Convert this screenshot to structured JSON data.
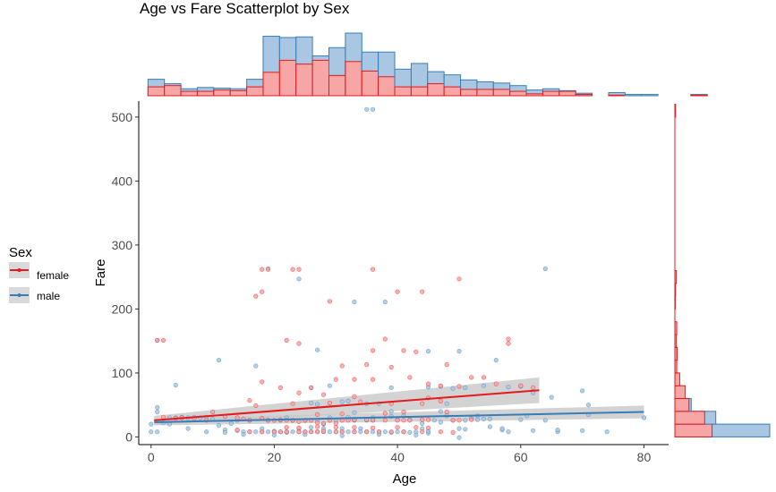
{
  "chart_data": {
    "type": "scatter",
    "title": "Age vs Fare Scatterplot by Sex",
    "xlabel": "Age",
    "ylabel": "Fare",
    "xlim": [
      -2,
      84
    ],
    "ylim": [
      -12,
      525
    ],
    "x_ticks": [
      0,
      20,
      40,
      60,
      80
    ],
    "y_ticks": [
      0,
      100,
      200,
      300,
      400,
      500
    ],
    "grid": false,
    "legend": {
      "title": "Sex",
      "placement": "left",
      "entries": [
        "female",
        "male"
      ]
    },
    "colors": {
      "female": "#e41a1c",
      "female_fill": "#f8a5a5",
      "male": "#377eb8",
      "male_fill": "#a9c6e2",
      "band": "#c8c8c8"
    },
    "series": [
      {
        "name": "female",
        "points": [
          [
            1,
            151
          ],
          [
            2,
            151
          ],
          [
            18,
            262
          ],
          [
            19,
            262
          ],
          [
            23,
            262
          ],
          [
            24,
            262
          ],
          [
            18,
            227
          ],
          [
            17,
            220
          ],
          [
            36,
            262
          ],
          [
            44,
            227
          ],
          [
            40,
            227
          ],
          [
            50,
            247
          ],
          [
            29,
            212
          ],
          [
            24,
            146
          ],
          [
            22,
            151
          ],
          [
            38,
            153
          ],
          [
            36,
            135
          ],
          [
            41,
            135
          ],
          [
            43,
            133
          ],
          [
            48,
            113
          ],
          [
            58,
            146
          ],
          [
            58,
            153
          ],
          [
            31,
            111
          ],
          [
            35,
            113
          ],
          [
            39,
            109
          ],
          [
            16,
            57
          ],
          [
            18,
            86
          ],
          [
            21,
            77
          ],
          [
            26,
            77
          ],
          [
            30,
            90
          ],
          [
            33,
            90
          ],
          [
            36,
            90
          ],
          [
            42,
            93
          ],
          [
            45,
            83
          ],
          [
            47,
            80
          ],
          [
            50,
            79
          ],
          [
            52,
            93
          ],
          [
            54,
            93
          ],
          [
            56,
            83
          ],
          [
            60,
            80
          ],
          [
            62,
            77
          ],
          [
            24,
            69
          ],
          [
            28,
            66
          ],
          [
            33,
            63
          ],
          [
            45,
            61
          ],
          [
            47,
            56
          ],
          [
            2,
            31
          ],
          [
            4,
            29
          ],
          [
            5,
            30
          ],
          [
            7,
            29
          ],
          [
            9,
            26
          ],
          [
            12,
            32
          ],
          [
            14,
            30
          ],
          [
            15,
            28
          ],
          [
            16,
            26
          ],
          [
            18,
            29
          ],
          [
            19,
            26
          ],
          [
            20,
            26
          ],
          [
            21,
            27
          ],
          [
            22,
            26
          ],
          [
            23,
            26
          ],
          [
            24,
            24
          ],
          [
            25,
            26
          ],
          [
            26,
            26
          ],
          [
            27,
            22
          ],
          [
            28,
            21
          ],
          [
            29,
            26
          ],
          [
            30,
            21
          ],
          [
            31,
            26
          ],
          [
            32,
            26
          ],
          [
            33,
            27
          ],
          [
            35,
            27
          ],
          [
            36,
            26
          ],
          [
            38,
            26
          ],
          [
            40,
            26
          ],
          [
            41,
            26
          ],
          [
            42,
            26
          ],
          [
            44,
            27
          ],
          [
            45,
            27
          ],
          [
            48,
            39
          ],
          [
            49,
            26
          ],
          [
            50,
            26
          ],
          [
            52,
            27
          ],
          [
            14,
            11
          ],
          [
            16,
            8
          ],
          [
            18,
            8
          ],
          [
            20,
            8
          ],
          [
            21,
            8
          ],
          [
            22,
            8
          ],
          [
            24,
            8
          ],
          [
            25,
            8
          ],
          [
            26,
            8
          ],
          [
            27,
            8
          ],
          [
            28,
            9
          ],
          [
            30,
            8
          ],
          [
            31,
            8
          ],
          [
            33,
            8
          ],
          [
            35,
            8
          ],
          [
            37,
            8
          ],
          [
            39,
            8
          ],
          [
            41,
            8
          ],
          [
            44,
            8
          ],
          [
            47,
            8
          ],
          [
            49,
            7
          ],
          [
            22,
            15
          ],
          [
            24,
            14
          ],
          [
            27,
            16
          ],
          [
            30,
            15
          ],
          [
            33,
            15
          ],
          [
            36,
            14
          ],
          [
            40,
            15
          ],
          [
            43,
            15
          ],
          [
            45,
            14
          ],
          [
            17,
            49
          ],
          [
            23,
            52
          ],
          [
            29,
            53
          ],
          [
            34,
            55
          ],
          [
            39,
            52
          ],
          [
            44,
            52
          ],
          [
            27,
            35
          ],
          [
            31,
            36
          ],
          [
            38,
            37
          ],
          [
            41,
            39
          ],
          [
            10,
            39
          ]
        ],
        "trend": {
          "x": [
            0.5,
            63
          ],
          "y": [
            26,
            73
          ],
          "band_halfwidth": [
            7,
            20
          ]
        }
      },
      {
        "name": "male",
        "points": [
          [
            35,
            512
          ],
          [
            36,
            512
          ],
          [
            1,
            151
          ],
          [
            19,
            263
          ],
          [
            24,
            247
          ],
          [
            64,
            263
          ],
          [
            33,
            211
          ],
          [
            38,
            211
          ],
          [
            17,
            111
          ],
          [
            50,
            134
          ],
          [
            45,
            134
          ],
          [
            27,
            136
          ],
          [
            56,
            120
          ],
          [
            11,
            120
          ],
          [
            54,
            80
          ],
          [
            47,
            79
          ],
          [
            58,
            78
          ],
          [
            60,
            79
          ],
          [
            49,
            76
          ],
          [
            51,
            77
          ],
          [
            4,
            81
          ],
          [
            29,
            80
          ],
          [
            39,
            77
          ],
          [
            62,
            69
          ],
          [
            65,
            62
          ],
          [
            70,
            72
          ],
          [
            71,
            50
          ],
          [
            80,
            30
          ],
          [
            71,
            35
          ],
          [
            61,
            33
          ],
          [
            64,
            26
          ],
          [
            74,
            8
          ],
          [
            70,
            10
          ],
          [
            66,
            8
          ],
          [
            60,
            27
          ],
          [
            57,
            11
          ],
          [
            57,
            13
          ],
          [
            55,
            16
          ],
          [
            55,
            28
          ],
          [
            54,
            28
          ],
          [
            53,
            27
          ],
          [
            51,
            26
          ],
          [
            51,
            12
          ],
          [
            52,
            29
          ],
          [
            50,
            13
          ],
          [
            49,
            26
          ],
          [
            48,
            52
          ],
          [
            47,
            40
          ],
          [
            46,
            26
          ],
          [
            45,
            6
          ],
          [
            45,
            9
          ],
          [
            44,
            13
          ],
          [
            43,
            8
          ],
          [
            42,
            27
          ],
          [
            42,
            7
          ],
          [
            41,
            8
          ],
          [
            40,
            8
          ],
          [
            40,
            27
          ],
          [
            39,
            32
          ],
          [
            39,
            7
          ],
          [
            38,
            8
          ],
          [
            37,
            8
          ],
          [
            37,
            52
          ],
          [
            36,
            26
          ],
          [
            36,
            8
          ],
          [
            35,
            8
          ],
          [
            35,
            26
          ],
          [
            34,
            13
          ],
          [
            34,
            8
          ],
          [
            33,
            8
          ],
          [
            33,
            26
          ],
          [
            32,
            8
          ],
          [
            32,
            56
          ],
          [
            31,
            8
          ],
          [
            31,
            13
          ],
          [
            30,
            8
          ],
          [
            30,
            26
          ],
          [
            29,
            8
          ],
          [
            29,
            30
          ],
          [
            28,
            8
          ],
          [
            28,
            13
          ],
          [
            27,
            8
          ],
          [
            27,
            26
          ],
          [
            26,
            8
          ],
          [
            26,
            53
          ],
          [
            25,
            8
          ],
          [
            25,
            26
          ],
          [
            24,
            8
          ],
          [
            24,
            13
          ],
          [
            23,
            8
          ],
          [
            23,
            26
          ],
          [
            22,
            8
          ],
          [
            22,
            7
          ],
          [
            21,
            8
          ],
          [
            21,
            26
          ],
          [
            20,
            8
          ],
          [
            20,
            9
          ],
          [
            19,
            8
          ],
          [
            19,
            26
          ],
          [
            18,
            8
          ],
          [
            18,
            13
          ],
          [
            17,
            8
          ],
          [
            16,
            8
          ],
          [
            16,
            26
          ],
          [
            15,
            8
          ],
          [
            14,
            10
          ],
          [
            13,
            21
          ],
          [
            12,
            11
          ],
          [
            11,
            18
          ],
          [
            10,
            28
          ],
          [
            9,
            31
          ],
          [
            8,
            30
          ],
          [
            7,
            31
          ],
          [
            6,
            30
          ],
          [
            5,
            31
          ],
          [
            4,
            30
          ],
          [
            3,
            30
          ],
          [
            2,
            22
          ],
          [
            1,
            39
          ],
          [
            1,
            46
          ],
          [
            0,
            8
          ],
          [
            1,
            8
          ],
          [
            3,
            20
          ],
          [
            0,
            20
          ],
          [
            6,
            13
          ],
          [
            9,
            8
          ],
          [
            12,
            7
          ],
          [
            14,
            26
          ],
          [
            26,
            15
          ],
          [
            28,
            20
          ],
          [
            32,
            31
          ],
          [
            44,
            21
          ],
          [
            41,
            33
          ],
          [
            47,
            23
          ],
          [
            53,
            33
          ],
          [
            58,
            8
          ],
          [
            43,
            3
          ],
          [
            37,
            4
          ],
          [
            31,
            2
          ],
          [
            25,
            4
          ],
          [
            20,
            3
          ],
          [
            15,
            4
          ],
          [
            26,
            77
          ],
          [
            31,
            55
          ],
          [
            36,
            30
          ],
          [
            35,
            52
          ],
          [
            45,
            78
          ],
          [
            22,
            30
          ],
          [
            33,
            38
          ],
          [
            48,
            33
          ],
          [
            50,
            -1
          ],
          [
            62,
            10
          ],
          [
            66,
            11
          ],
          [
            39,
            40
          ],
          [
            27,
            51
          ]
        ],
        "trend": {
          "x": [
            0.5,
            80
          ],
          "y": [
            23,
            39
          ],
          "band_halfwidth": [
            5,
            10
          ]
        }
      }
    ],
    "age_histogram": {
      "bin_width": 2.67,
      "start": -0.5,
      "male_counts": [
        26,
        19,
        11,
        13,
        12,
        11,
        26,
        94,
        92,
        93,
        63,
        76,
        99,
        69,
        69,
        42,
        51,
        38,
        33,
        25,
        22,
        20,
        16,
        9,
        11,
        8,
        4,
        0,
        5,
        2,
        2,
        0,
        0,
        2
      ],
      "female_counts": [
        14,
        16,
        7,
        7,
        9,
        8,
        14,
        37,
        56,
        50,
        56,
        32,
        54,
        39,
        30,
        14,
        14,
        19,
        14,
        10,
        10,
        10,
        7,
        3,
        7,
        7,
        2,
        0,
        1,
        0,
        0,
        0,
        0,
        1
      ]
    },
    "fare_histogram": {
      "bin_width": 20,
      "male_counts": [
        255,
        110,
        44,
        19,
        8,
        2,
        2,
        4,
        1,
        0,
        1,
        2,
        4,
        0,
        0,
        0,
        0,
        0,
        0,
        0,
        0,
        0,
        0,
        0,
        0,
        2
      ],
      "female_counts": [
        100,
        80,
        38,
        28,
        13,
        5,
        6,
        4,
        5,
        0,
        1,
        1,
        4,
        0,
        0,
        0,
        0,
        0,
        0,
        0,
        0,
        0,
        0,
        0,
        0,
        1
      ]
    }
  }
}
